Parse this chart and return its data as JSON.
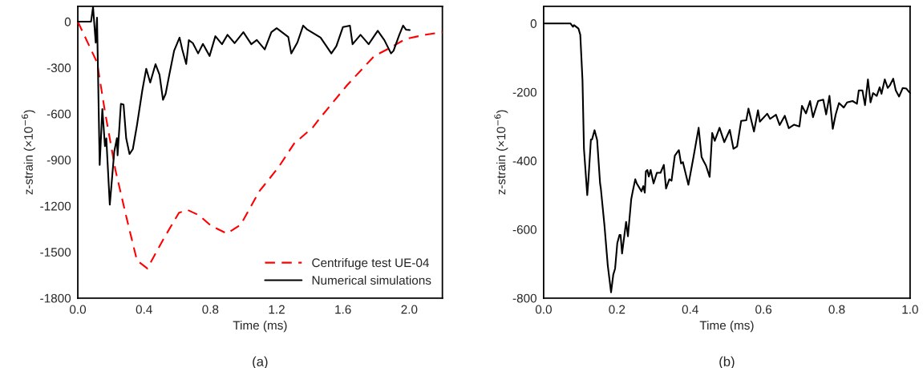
{
  "chart_data": [
    {
      "type": "line",
      "xlabel": "Time (ms)",
      "ylabel": "z-strain (×10$^{−6}$)",
      "annotations": [
        "(a)"
      ],
      "legend": "bottom right",
      "grid": false,
      "xlim": [
        0,
        2.2
      ],
      "xticks": [
        {
          "value": 0,
          "label": "0.0"
        },
        0.4,
        0.8,
        1.2,
        1.6,
        {
          "value": 2.0,
          "label": "2.0"
        }
      ],
      "ylim": [
        -1800,
        100
      ],
      "yticks": [
        -1800,
        -1500,
        -1200,
        -900,
        -600,
        -300,
        0
      ],
      "series": [
        {
          "name": "Centrifuge test UE-04",
          "color": "#ff0000",
          "line_style": "dashed",
          "x": [
            0,
            0.116,
            0.164,
            0.227,
            0.294,
            0.357,
            0.42,
            0.516,
            0.61,
            0.66,
            0.73,
            0.805,
            0.9,
            0.983,
            1.095,
            1.21,
            1.305,
            1.417,
            1.465,
            1.624,
            1.788,
            1.88,
            1.98,
            2.1,
            2.2
          ],
          "values": [
            0,
            -265,
            -587,
            -966,
            -1277,
            -1555,
            -1607,
            -1417,
            -1245,
            -1225,
            -1260,
            -1330,
            -1380,
            -1322,
            -1105,
            -950,
            -794,
            -690,
            -623,
            -415,
            -225,
            -173,
            -112,
            -85,
            -69
          ]
        },
        {
          "name": "Numerical simulations",
          "color": "#000000",
          "line_style": "solid",
          "x": [
            0,
            0.08,
            0.092,
            0.108,
            0.116,
            0.132,
            0.148,
            0.164,
            0.172,
            0.193,
            0.204,
            0.22,
            0.236,
            0.24,
            0.26,
            0.276,
            0.292,
            0.312,
            0.332,
            0.357,
            0.389,
            0.413,
            0.437,
            0.469,
            0.493,
            0.514,
            0.53,
            0.549,
            0.581,
            0.614,
            0.63,
            0.654,
            0.67,
            0.694,
            0.726,
            0.755,
            0.795,
            0.83,
            0.87,
            0.903,
            0.946,
            0.999,
            1.047,
            1.08,
            1.128,
            1.168,
            1.2,
            1.27,
            1.288,
            1.325,
            1.36,
            1.385,
            1.465,
            1.53,
            1.56,
            1.6,
            1.642,
            1.658,
            1.706,
            1.755,
            1.81,
            1.85,
            1.89,
            1.905,
            1.94,
            1.963,
            1.98,
            2.003
          ],
          "values": [
            0,
            0,
            95,
            -137,
            26,
            -933,
            -570,
            -811,
            -760,
            -1192,
            -1053,
            -846,
            -759,
            -870,
            -535,
            -540,
            -760,
            -862,
            -830,
            -675,
            -449,
            -307,
            -397,
            -277,
            -345,
            -509,
            -470,
            -363,
            -190,
            -104,
            -180,
            -276,
            -121,
            -140,
            -207,
            -145,
            -224,
            -95,
            -147,
            -86,
            -140,
            -69,
            -147,
            -120,
            -181,
            -69,
            -43,
            -100,
            -207,
            -136,
            -26,
            -52,
            -104,
            -207,
            -160,
            -35,
            -26,
            -147,
            -86,
            -147,
            -60,
            -121,
            -207,
            -190,
            -86,
            -26,
            -52,
            -55
          ]
        }
      ]
    },
    {
      "type": "line",
      "xlabel": "Time (ms)",
      "ylabel": "z-strain (×10$^{−6}$)",
      "annotations": [
        "(b)"
      ],
      "legend": false,
      "grid": false,
      "xlim": [
        0,
        1.0
      ],
      "xticks": [
        {
          "value": 0,
          "label": "0.0"
        },
        0.2,
        0.4,
        0.6,
        0.8,
        {
          "value": 1.0,
          "label": "1.0"
        }
      ],
      "ylim": [
        -800,
        50
      ],
      "yticks": [
        -800,
        -600,
        -400,
        -200,
        0
      ],
      "series": [
        {
          "color": "#000000",
          "line_style": "solid",
          "x": [
            0,
            0.073,
            0.08,
            0.083,
            0.095,
            0.1,
            0.106,
            0.11,
            0.119,
            0.122,
            0.129,
            0.132,
            0.139,
            0.146,
            0.154,
            0.156,
            0.166,
            0.175,
            0.184,
            0.19,
            0.195,
            0.201,
            0.207,
            0.21,
            0.214,
            0.225,
            0.23,
            0.239,
            0.243,
            0.25,
            0.254,
            0.267,
            0.272,
            0.276,
            0.279,
            0.283,
            0.287,
            0.292,
            0.3,
            0.309,
            0.319,
            0.328,
            0.334,
            0.343,
            0.349,
            0.358,
            0.369,
            0.375,
            0.38,
            0.395,
            0.409,
            0.423,
            0.431,
            0.436,
            0.443,
            0.453,
            0.46,
            0.467,
            0.48,
            0.493,
            0.508,
            0.518,
            0.528,
            0.539,
            0.553,
            0.559,
            0.574,
            0.585,
            0.59,
            0.61,
            0.618,
            0.634,
            0.644,
            0.658,
            0.669,
            0.683,
            0.698,
            0.705,
            0.716,
            0.727,
            0.735,
            0.749,
            0.763,
            0.771,
            0.78,
            0.789,
            0.797,
            0.806,
            0.819,
            0.828,
            0.843,
            0.855,
            0.86,
            0.87,
            0.877,
            0.885,
            0.892,
            0.899,
            0.909,
            0.917,
            0.922,
            0.931,
            0.939,
            0.945,
            0.954,
            0.961,
            0.97,
            0.98,
            0.99,
            1.0
          ],
          "values": [
            0,
            0,
            -10,
            -5,
            -15,
            -33,
            -165,
            -365,
            -500,
            -458,
            -338,
            -338,
            -311,
            -340,
            -466,
            -480,
            -589,
            -705,
            -783,
            -732,
            -714,
            -640,
            -616,
            -616,
            -670,
            -578,
            -620,
            -512,
            -490,
            -454,
            -466,
            -489,
            -474,
            -493,
            -431,
            -427,
            -446,
            -427,
            -466,
            -435,
            -435,
            -412,
            -481,
            -454,
            -458,
            -385,
            -369,
            -408,
            -404,
            -470,
            -389,
            -304,
            -389,
            -400,
            -414,
            -447,
            -319,
            -342,
            -304,
            -346,
            -310,
            -365,
            -358,
            -284,
            -282,
            -248,
            -315,
            -253,
            -286,
            -263,
            -278,
            -266,
            -296,
            -269,
            -305,
            -295,
            -300,
            -240,
            -262,
            -226,
            -273,
            -226,
            -222,
            -265,
            -211,
            -307,
            -265,
            -232,
            -245,
            -230,
            -226,
            -234,
            -195,
            -195,
            -238,
            -163,
            -230,
            -203,
            -211,
            -186,
            -205,
            -163,
            -188,
            -180,
            -161,
            -195,
            -213,
            -188,
            -190,
            -203
          ]
        }
      ]
    }
  ]
}
